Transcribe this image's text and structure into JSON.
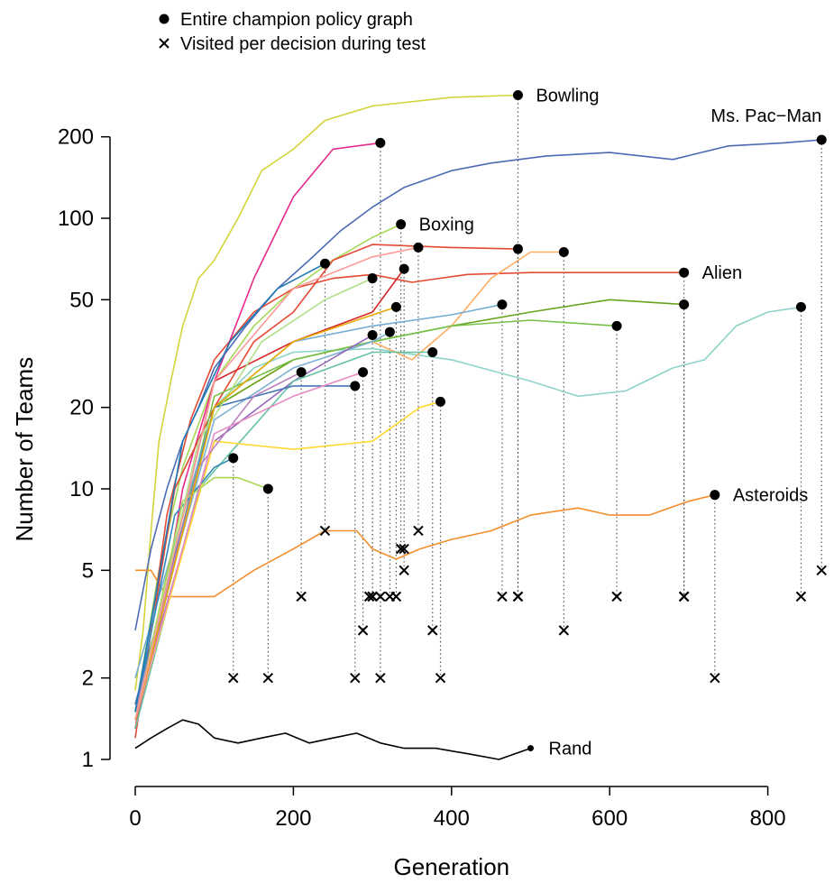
{
  "chart_data": {
    "type": "line",
    "xlabel": "Generation",
    "ylabel": "Number of Teams",
    "xlim": [
      0,
      880
    ],
    "ylim": [
      1,
      300
    ],
    "y_scale": "log",
    "x_ticks": [
      0,
      200,
      400,
      600,
      800
    ],
    "y_ticks": [
      1,
      2,
      5,
      10,
      20,
      50,
      100,
      200
    ],
    "grid": false,
    "legend_position": "top-left",
    "legend": [
      {
        "marker": "●",
        "label": "Entire champion policy graph"
      },
      {
        "marker": "×",
        "label": "Visited per decision during test"
      }
    ],
    "series": [
      {
        "name": "Bowling",
        "color": "#d4d43a",
        "end": [
          484,
          285
        ],
        "test": 4,
        "points": [
          [
            0,
            1.8
          ],
          [
            10,
            3
          ],
          [
            20,
            7
          ],
          [
            30,
            15
          ],
          [
            45,
            25
          ],
          [
            60,
            40
          ],
          [
            80,
            60
          ],
          [
            100,
            70
          ],
          [
            130,
            100
          ],
          [
            160,
            150
          ],
          [
            200,
            180
          ],
          [
            240,
            230
          ],
          [
            300,
            260
          ],
          [
            400,
            280
          ],
          [
            484,
            285
          ]
        ]
      },
      {
        "name": "Ms. Pac-Man",
        "color": "#4c6bb5",
        "end": [
          868,
          195
        ],
        "test": 5,
        "points": [
          [
            0,
            3
          ],
          [
            20,
            6
          ],
          [
            40,
            10
          ],
          [
            60,
            15
          ],
          [
            80,
            20
          ],
          [
            100,
            28
          ],
          [
            140,
            40
          ],
          [
            180,
            55
          ],
          [
            220,
            70
          ],
          [
            260,
            90
          ],
          [
            300,
            110
          ],
          [
            340,
            130
          ],
          [
            400,
            150
          ],
          [
            450,
            160
          ],
          [
            520,
            170
          ],
          [
            600,
            175
          ],
          [
            680,
            165
          ],
          [
            750,
            185
          ],
          [
            820,
            190
          ],
          [
            868,
            195
          ]
        ]
      },
      {
        "name": "Boxing",
        "color": "#a6d854",
        "end": [
          336,
          95
        ],
        "test": 6,
        "points": [
          [
            0,
            1.5
          ],
          [
            30,
            5
          ],
          [
            60,
            12
          ],
          [
            100,
            25
          ],
          [
            150,
            40
          ],
          [
            200,
            55
          ],
          [
            250,
            70
          ],
          [
            300,
            85
          ],
          [
            336,
            95
          ]
        ]
      },
      {
        "name": "Alien",
        "color": "#e34a33",
        "end": [
          694,
          63
        ],
        "test": 4,
        "points": [
          [
            0,
            1.2
          ],
          [
            20,
            3
          ],
          [
            40,
            8
          ],
          [
            70,
            18
          ],
          [
            100,
            30
          ],
          [
            150,
            45
          ],
          [
            200,
            55
          ],
          [
            250,
            60
          ],
          [
            300,
            62
          ],
          [
            350,
            58
          ],
          [
            420,
            62
          ],
          [
            500,
            63
          ],
          [
            600,
            63
          ],
          [
            694,
            63
          ]
        ]
      },
      {
        "name": "Asteroids",
        "color": "#f28e2b",
        "end": [
          733,
          9.5
        ],
        "test": 2,
        "points": [
          [
            0,
            5
          ],
          [
            20,
            5
          ],
          [
            40,
            4
          ],
          [
            80,
            4
          ],
          [
            100,
            4
          ],
          [
            150,
            5
          ],
          [
            200,
            6
          ],
          [
            240,
            7
          ],
          [
            280,
            7
          ],
          [
            300,
            6
          ],
          [
            330,
            5.5
          ],
          [
            360,
            6
          ],
          [
            400,
            6.5
          ],
          [
            450,
            7
          ],
          [
            500,
            8
          ],
          [
            560,
            8.5
          ],
          [
            600,
            8
          ],
          [
            650,
            8
          ],
          [
            700,
            9
          ],
          [
            733,
            9.5
          ]
        ]
      },
      {
        "name": "Rand",
        "color": "#000000",
        "end": [
          500,
          1.1
        ],
        "test": null,
        "points": [
          [
            0,
            1.1
          ],
          [
            20,
            1.2
          ],
          [
            40,
            1.3
          ],
          [
            60,
            1.4
          ],
          [
            80,
            1.35
          ],
          [
            100,
            1.2
          ],
          [
            130,
            1.15
          ],
          [
            160,
            1.2
          ],
          [
            190,
            1.25
          ],
          [
            220,
            1.15
          ],
          [
            250,
            1.2
          ],
          [
            280,
            1.25
          ],
          [
            310,
            1.15
          ],
          [
            340,
            1.1
          ],
          [
            380,
            1.1
          ],
          [
            420,
            1.05
          ],
          [
            460,
            1.0
          ],
          [
            500,
            1.1
          ]
        ]
      },
      {
        "name": "",
        "color": "#8dd3c7",
        "end": [
          842,
          47
        ],
        "test": 4,
        "points": [
          [
            0,
            1.5
          ],
          [
            50,
            10
          ],
          [
            100,
            20
          ],
          [
            150,
            28
          ],
          [
            200,
            32
          ],
          [
            300,
            33
          ],
          [
            400,
            30
          ],
          [
            500,
            25
          ],
          [
            560,
            22
          ],
          [
            620,
            23
          ],
          [
            680,
            28
          ],
          [
            720,
            30
          ],
          [
            760,
            40
          ],
          [
            800,
            45
          ],
          [
            842,
            47
          ]
        ]
      },
      {
        "name": "",
        "color": "#e7298a",
        "end": [
          310,
          190
        ],
        "test": 2,
        "points": [
          [
            0,
            1.3
          ],
          [
            30,
            3
          ],
          [
            60,
            10
          ],
          [
            100,
            25
          ],
          [
            150,
            60
          ],
          [
            200,
            120
          ],
          [
            250,
            180
          ],
          [
            310,
            190
          ]
        ]
      },
      {
        "name": "",
        "color": "#e34a33",
        "end": [
          484,
          77
        ],
        "test": 4,
        "points": [
          [
            0,
            1.3
          ],
          [
            50,
            10
          ],
          [
            100,
            20
          ],
          [
            150,
            35
          ],
          [
            200,
            45
          ],
          [
            250,
            70
          ],
          [
            300,
            80
          ],
          [
            400,
            78
          ],
          [
            484,
            77
          ]
        ]
      },
      {
        "name": "",
        "color": "#fdae61",
        "end": [
          542,
          75
        ],
        "test": 3,
        "points": [
          [
            0,
            1.5
          ],
          [
            100,
            20
          ],
          [
            200,
            30
          ],
          [
            300,
            35
          ],
          [
            350,
            30
          ],
          [
            400,
            40
          ],
          [
            450,
            60
          ],
          [
            500,
            75
          ],
          [
            542,
            75
          ]
        ]
      },
      {
        "name": "",
        "color": "#66a61e",
        "end": [
          694,
          48
        ],
        "test": 4,
        "points": [
          [
            0,
            1.4
          ],
          [
            100,
            20
          ],
          [
            200,
            30
          ],
          [
            300,
            35
          ],
          [
            400,
            40
          ],
          [
            500,
            45
          ],
          [
            600,
            50
          ],
          [
            694,
            48
          ]
        ]
      },
      {
        "name": "",
        "color": "#77c14a",
        "end": [
          609,
          40
        ],
        "test": 4,
        "points": [
          [
            0,
            1.4
          ],
          [
            100,
            22
          ],
          [
            200,
            30
          ],
          [
            300,
            35
          ],
          [
            400,
            40
          ],
          [
            500,
            42
          ],
          [
            609,
            40
          ]
        ]
      },
      {
        "name": "",
        "color": "#74add1",
        "end": [
          464,
          48
        ],
        "test": 4,
        "points": [
          [
            0,
            2
          ],
          [
            100,
            20
          ],
          [
            200,
            35
          ],
          [
            300,
            40
          ],
          [
            400,
            44
          ],
          [
            464,
            48
          ]
        ]
      },
      {
        "name": "",
        "color": "#d62728",
        "end": [
          340,
          65
        ],
        "test": 5,
        "points": [
          [
            0,
            1.4
          ],
          [
            100,
            25
          ],
          [
            200,
            35
          ],
          [
            300,
            45
          ],
          [
            340,
            65
          ]
        ]
      },
      {
        "name": "",
        "color": "#80b1d3",
        "end": [
          322,
          38
        ],
        "test": 4,
        "points": [
          [
            0,
            1.6
          ],
          [
            100,
            18
          ],
          [
            200,
            28
          ],
          [
            300,
            35
          ],
          [
            322,
            38
          ]
        ]
      },
      {
        "name": "",
        "color": "#9467bd",
        "end": [
          300,
          37
        ],
        "test": 4,
        "points": [
          [
            0,
            1.5
          ],
          [
            100,
            15
          ],
          [
            200,
            25
          ],
          [
            300,
            37
          ]
        ]
      },
      {
        "name": "",
        "color": "#66c2a5",
        "end": [
          376,
          32
        ],
        "test": 3,
        "points": [
          [
            0,
            1.3
          ],
          [
            80,
            10
          ],
          [
            200,
            25
          ],
          [
            300,
            32
          ],
          [
            376,
            32
          ]
        ]
      },
      {
        "name": "",
        "color": "#ffd92f",
        "end": [
          386,
          21
        ],
        "test": 2,
        "points": [
          [
            0,
            1.4
          ],
          [
            100,
            15
          ],
          [
            200,
            14
          ],
          [
            300,
            15
          ],
          [
            360,
            20
          ],
          [
            386,
            21
          ]
        ]
      },
      {
        "name": "",
        "color": "#4575b4",
        "end": [
          278,
          24
        ],
        "test": 2,
        "points": [
          [
            0,
            1.6
          ],
          [
            100,
            20
          ],
          [
            200,
            24
          ],
          [
            278,
            24
          ]
        ]
      },
      {
        "name": "",
        "color": "#3288bd",
        "end": [
          124,
          13
        ],
        "test": 2,
        "points": [
          [
            0,
            1.5
          ],
          [
            50,
            8
          ],
          [
            100,
            12
          ],
          [
            124,
            13
          ]
        ]
      },
      {
        "name": "",
        "color": "#a6d854",
        "end": [
          168,
          10
        ],
        "test": 2,
        "points": [
          [
            0,
            1.4
          ],
          [
            60,
            9
          ],
          [
            100,
            11
          ],
          [
            130,
            11
          ],
          [
            168,
            10
          ]
        ]
      },
      {
        "name": "",
        "color": "#bc80bd",
        "end": [
          210,
          27
        ],
        "test": 4,
        "points": [
          [
            0,
            1.5
          ],
          [
            80,
            12
          ],
          [
            150,
            22
          ],
          [
            210,
            27
          ]
        ]
      },
      {
        "name": "",
        "color": "#e78ac3",
        "end": [
          288,
          27
        ],
        "test": 3,
        "points": [
          [
            0,
            1.4
          ],
          [
            100,
            16
          ],
          [
            200,
            22
          ],
          [
            288,
            27
          ]
        ]
      },
      {
        "name": "",
        "color": "#1f78b4",
        "end": [
          240,
          68
        ],
        "test": 7,
        "points": [
          [
            0,
            1.5
          ],
          [
            60,
            15
          ],
          [
            120,
            35
          ],
          [
            180,
            55
          ],
          [
            240,
            68
          ]
        ]
      },
      {
        "name": "",
        "color": "#b2df8a",
        "end": [
          300,
          60
        ],
        "test": 4,
        "points": [
          [
            0,
            1.4
          ],
          [
            80,
            15
          ],
          [
            160,
            35
          ],
          [
            240,
            50
          ],
          [
            300,
            60
          ]
        ]
      },
      {
        "name": "",
        "color": "#e6ab02",
        "end": [
          330,
          47
        ],
        "test": 4,
        "points": [
          [
            0,
            1.4
          ],
          [
            100,
            20
          ],
          [
            200,
            35
          ],
          [
            280,
            42
          ],
          [
            330,
            47
          ]
        ]
      },
      {
        "name": "",
        "color": "#fb9a99",
        "end": [
          358,
          78
        ],
        "test": 7,
        "points": [
          [
            0,
            1.4
          ],
          [
            100,
            25
          ],
          [
            200,
            55
          ],
          [
            300,
            72
          ],
          [
            358,
            78
          ]
        ]
      }
    ],
    "annotations": [
      {
        "text": "Bowling",
        "series": "Bowling",
        "side": "right"
      },
      {
        "text": "Ms. Pac−Man",
        "series": "Ms. Pac-Man",
        "side": "above"
      },
      {
        "text": "Boxing",
        "series": "Boxing",
        "side": "right"
      },
      {
        "text": "Alien",
        "series": "Alien",
        "side": "right"
      },
      {
        "text": "Asteroids",
        "series": "Asteroids",
        "side": "right"
      },
      {
        "text": "Rand",
        "series": "Rand",
        "side": "right"
      }
    ],
    "extra_test_markers": [
      [
        336,
        6
      ],
      [
        340,
        6
      ],
      [
        296,
        4
      ],
      [
        300,
        4
      ],
      [
        310,
        4
      ],
      [
        694,
        4
      ]
    ]
  }
}
